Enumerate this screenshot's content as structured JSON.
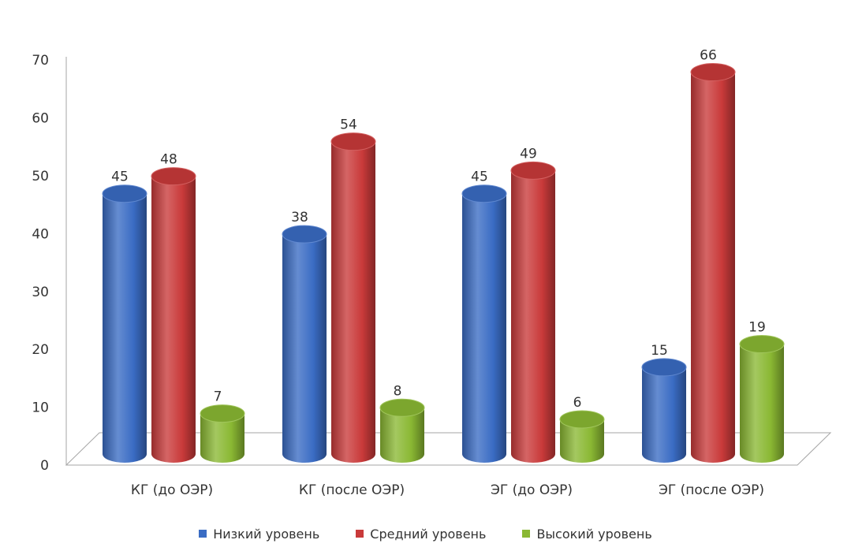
{
  "chart_data": {
    "type": "bar",
    "categories": [
      "КГ (до ОЭР)",
      "КГ (после ОЭР)",
      "ЭГ (до ОЭР)",
      "ЭГ (после ОЭР)"
    ],
    "series": [
      {
        "name": "Низкий уровень",
        "values": [
          45,
          38,
          45,
          15
        ],
        "color": "#3a6cc4"
      },
      {
        "name": "Средний уровень",
        "values": [
          48,
          54,
          49,
          66
        ],
        "color": "#c93a3a"
      },
      {
        "name": "Высокий уровень",
        "values": [
          7,
          8,
          6,
          19
        ],
        "color": "#8ab833"
      }
    ],
    "yticks": [
      "0",
      "10",
      "20",
      "30",
      "40",
      "50",
      "60",
      "70"
    ],
    "ylim": [
      0,
      70
    ],
    "grid": false,
    "legend_position": "bottom",
    "style": "3d-cylinder"
  }
}
